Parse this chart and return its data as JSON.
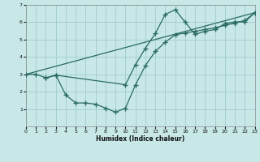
{
  "xlabel": "Humidex (Indice chaleur)",
  "bg_color": "#c8e8e8",
  "grid_color": "#a0cccc",
  "line_color": "#2a6b60",
  "xlim": [
    0,
    23
  ],
  "ylim": [
    0,
    7
  ],
  "xticks": [
    0,
    1,
    2,
    3,
    4,
    5,
    6,
    7,
    8,
    9,
    10,
    11,
    12,
    13,
    14,
    15,
    16,
    17,
    18,
    19,
    20,
    21,
    22,
    23
  ],
  "yticks": [
    1,
    2,
    3,
    4,
    5,
    6,
    7
  ],
  "line1_x": [
    0,
    1,
    2,
    3,
    10,
    11,
    12,
    13,
    14,
    15,
    16,
    17,
    18,
    19,
    20,
    21,
    22,
    23
  ],
  "line1_y": [
    3.0,
    3.0,
    2.8,
    2.95,
    2.4,
    3.55,
    4.5,
    5.35,
    6.45,
    6.72,
    6.0,
    5.3,
    5.48,
    5.58,
    5.92,
    6.02,
    6.02,
    6.55
  ],
  "line2_x": [
    2,
    3,
    4,
    5,
    6,
    7,
    8,
    9,
    10,
    11,
    12,
    13,
    14,
    15,
    16,
    17,
    18,
    19,
    20,
    21,
    22,
    23
  ],
  "line2_y": [
    2.78,
    2.95,
    1.8,
    1.35,
    1.35,
    1.28,
    1.05,
    0.82,
    1.05,
    2.38,
    3.5,
    4.32,
    4.85,
    5.28,
    5.38,
    5.48,
    5.58,
    5.68,
    5.82,
    5.95,
    6.1,
    6.55
  ],
  "line3_x": [
    0,
    23
  ],
  "line3_y": [
    3.0,
    6.55
  ],
  "figsize": [
    3.2,
    2.0
  ],
  "dpi": 100
}
